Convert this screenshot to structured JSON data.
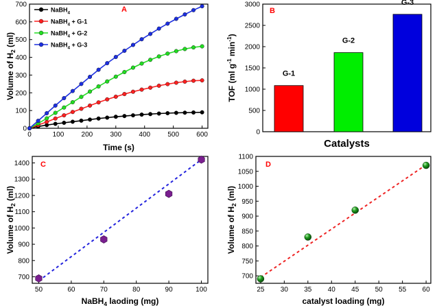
{
  "chart_data": [
    {
      "panel": "A",
      "type": "line",
      "xlabel": "Time (s)",
      "ylabel": "Volume of H2 (ml)",
      "ylabel_parts": [
        "Volume of H",
        "2",
        " (ml)"
      ],
      "xlim": [
        0,
        620
      ],
      "ylim": [
        0,
        700
      ],
      "xticks": [
        0,
        100,
        200,
        300,
        400,
        500,
        600
      ],
      "yticks": [
        0,
        100,
        200,
        300,
        400,
        500,
        600,
        700
      ],
      "legend_position": "top-left",
      "x": [
        0,
        30,
        60,
        90,
        120,
        150,
        180,
        210,
        240,
        270,
        300,
        330,
        360,
        390,
        420,
        450,
        480,
        510,
        540,
        570,
        600
      ],
      "series": [
        {
          "name": "NaBH4",
          "legend_parts": [
            "NaBH",
            "4",
            ""
          ],
          "color": "#000000",
          "values": [
            0,
            10,
            18,
            25,
            31,
            37,
            43,
            49,
            55,
            60,
            65,
            69,
            73,
            77,
            80,
            83,
            85,
            87,
            88,
            89,
            90
          ]
        },
        {
          "name": "NaBH4 + G-1",
          "legend_parts": [
            "NaBH",
            "4",
            " + G-1"
          ],
          "color": "#ff2020",
          "values": [
            0,
            18,
            36,
            55,
            73,
            92,
            110,
            128,
            146,
            163,
            178,
            193,
            206,
            218,
            229,
            240,
            249,
            257,
            263,
            268,
            270
          ]
        },
        {
          "name": "NaBH4 + G-2",
          "legend_parts": [
            "NaBH",
            "4",
            " + G-2"
          ],
          "color": "#22dd22",
          "values": [
            0,
            27,
            56,
            87,
            117,
            147,
            177,
            207,
            236,
            264,
            291,
            317,
            342,
            365,
            386,
            405,
            421,
            435,
            447,
            456,
            462
          ]
        },
        {
          "name": "NaBH4 + G-3",
          "legend_parts": [
            "NaBH",
            "4",
            " + G-3"
          ],
          "color": "#1c2fe0",
          "values": [
            0,
            42,
            85,
            128,
            170,
            210,
            250,
            290,
            330,
            367,
            402,
            437,
            470,
            502,
            532,
            562,
            590,
            617,
            642,
            666,
            688
          ]
        }
      ]
    },
    {
      "panel": "B",
      "type": "bar",
      "xlabel": "Catalysts",
      "ylabel": "TOF (ml g-1 min-1)",
      "ylabel_parts": [
        "TOF (ml g",
        "-1",
        " min",
        "-1",
        ")"
      ],
      "ylim": [
        0,
        3000
      ],
      "yticks": [
        0,
        500,
        1000,
        1500,
        2000,
        2500,
        3000
      ],
      "categories": [
        "G-1",
        "G-2",
        "G-3"
      ],
      "values": [
        1085,
        1860,
        2760
      ],
      "colors": [
        "#ff0000",
        "#00ee00",
        "#0000dd"
      ]
    },
    {
      "panel": "C",
      "type": "scatter",
      "xlabel": "NaBH4 laoding (mg)",
      "xlabel_parts": [
        "NaBH",
        "4",
        " laoding (mg)"
      ],
      "ylabel": "Volume of H2 (ml)",
      "ylabel_parts": [
        "Volume of H",
        "2",
        " (ml)"
      ],
      "xlim": [
        48,
        102
      ],
      "ylim": [
        660,
        1440
      ],
      "xticks": [
        50,
        60,
        70,
        80,
        90,
        100
      ],
      "yticks": [
        700,
        800,
        900,
        1000,
        1100,
        1200,
        1300,
        1400
      ],
      "x": [
        50,
        70,
        90,
        100
      ],
      "y": [
        690,
        930,
        1210,
        1420
      ],
      "fit_line": [
        [
          50,
          675
        ],
        [
          100,
          1420
        ]
      ],
      "marker_color": "#7a1f8f",
      "fit_color": "#2222dd"
    },
    {
      "panel": "D",
      "type": "scatter",
      "xlabel": "catalyst loading (mg)",
      "ylabel": "Volume of H2 (ml)",
      "ylabel_parts": [
        "Volume of H",
        "2",
        " (ml)"
      ],
      "xlim": [
        24,
        61
      ],
      "ylim": [
        675,
        1100
      ],
      "xticks": [
        25,
        30,
        35,
        40,
        45,
        50,
        55,
        60
      ],
      "yticks": [
        700,
        750,
        800,
        850,
        900,
        950,
        1000,
        1050,
        1100
      ],
      "x": [
        25,
        35,
        45,
        60
      ],
      "y": [
        690,
        830,
        920,
        1070
      ],
      "fit_line": [
        [
          25,
          695
        ],
        [
          60,
          1072
        ]
      ],
      "marker_color": "#1f9d1f",
      "fit_color": "#ee2222"
    }
  ]
}
